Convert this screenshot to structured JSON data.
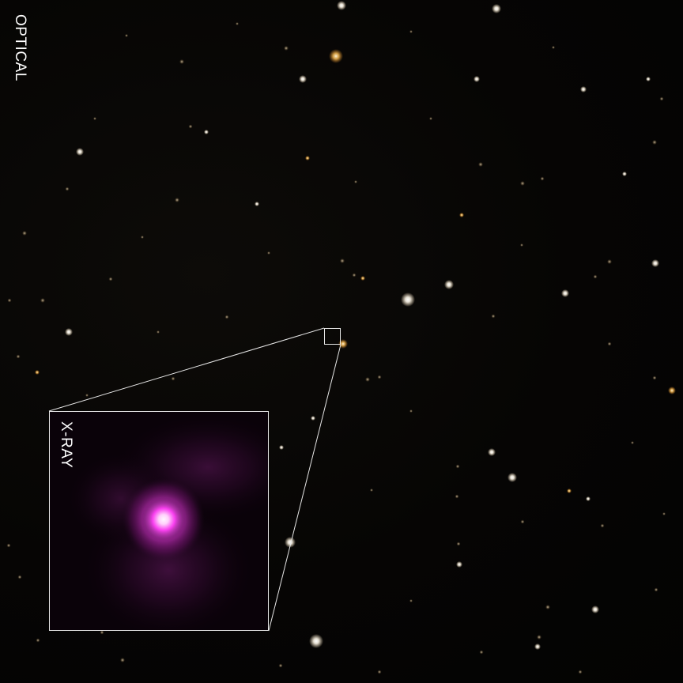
{
  "optical_panel": {
    "label": "OPTICAL"
  },
  "xray_inset": {
    "label": "X-RAY"
  },
  "colors": {
    "sky_background": "#050403",
    "frame_line": "#e6e6e6",
    "xray_glow": "#ff3df5",
    "xray_core": "#fff3ff",
    "label_text": "#ffffff"
  }
}
